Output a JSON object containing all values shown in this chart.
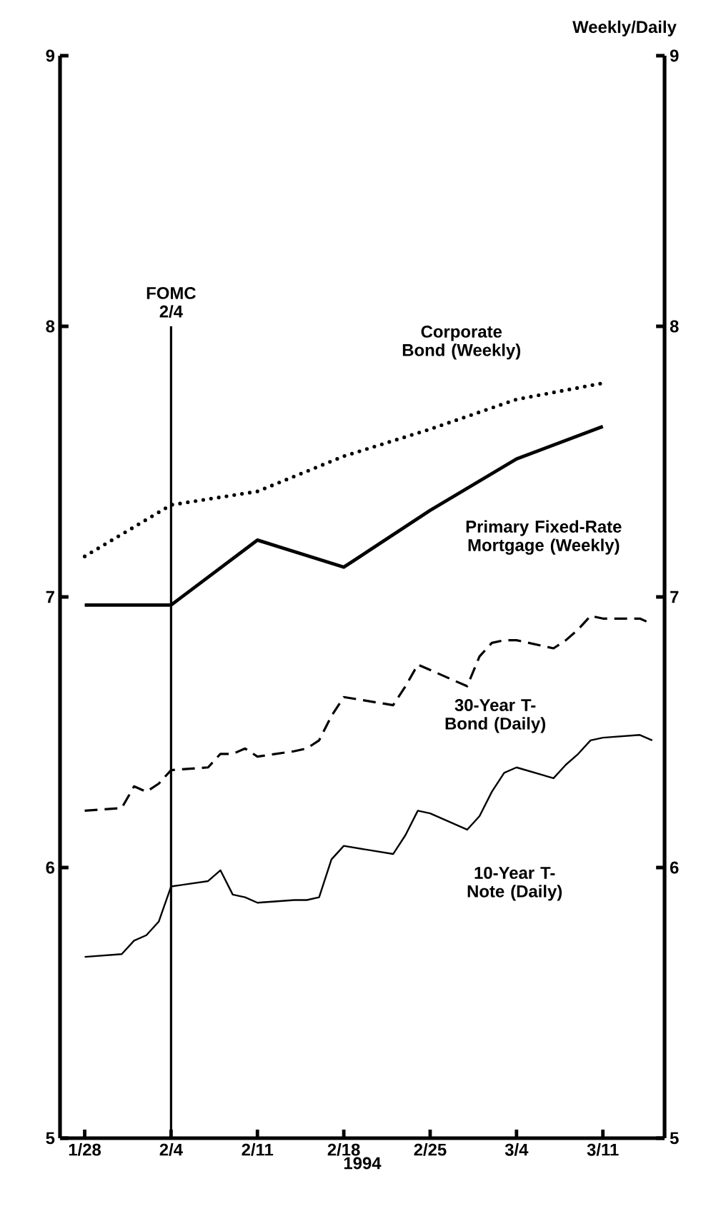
{
  "chart_data": {
    "type": "line",
    "xlabel": "1994",
    "y2label": "Weekly/Daily",
    "xlim": [
      "1994-01-26",
      "1994-03-16"
    ],
    "xticks": [
      {
        "value": "1994-01-28",
        "label": "1/28"
      },
      {
        "value": "1994-02-04",
        "label": "2/4"
      },
      {
        "value": "1994-02-11",
        "label": "2/11"
      },
      {
        "value": "1994-02-18",
        "label": "2/18"
      },
      {
        "value": "1994-02-25",
        "label": "2/25"
      },
      {
        "value": "1994-03-04",
        "label": "3/4"
      },
      {
        "value": "1994-03-11",
        "label": "3/11"
      }
    ],
    "ylim": [
      5,
      9
    ],
    "yticks": [
      5,
      6,
      7,
      8,
      9
    ],
    "y2lim": [
      5,
      9
    ],
    "y2ticks": [
      5,
      6,
      7,
      8,
      9
    ],
    "grid": false,
    "legend": false,
    "marker": "none",
    "ref_lines": [
      {
        "axis": "x",
        "value": "1994-02-04",
        "label": "FOMC 2/4"
      }
    ],
    "series": [
      {
        "name": "Corporate Bond (Weekly)",
        "color": "#000000",
        "line_style": "dotted",
        "x": [
          "1994-01-28",
          "1994-02-04",
          "1994-02-11",
          "1994-02-18",
          "1994-02-25",
          "1994-03-04",
          "1994-03-11"
        ],
        "values": [
          7.15,
          7.34,
          7.39,
          7.52,
          7.62,
          7.73,
          7.79
        ]
      },
      {
        "name": "Primary Fixed-Rate Mortgage (Weekly)",
        "color": "#000000",
        "line_style": "solid",
        "x": [
          "1994-01-28",
          "1994-02-04",
          "1994-02-11",
          "1994-02-18",
          "1994-02-25",
          "1994-03-04",
          "1994-03-11"
        ],
        "values": [
          6.97,
          6.97,
          7.21,
          7.11,
          7.32,
          7.51,
          7.63
        ]
      },
      {
        "name": "30-Year T-Bond (Daily)",
        "color": "#000000",
        "line_style": "dashed",
        "x": [
          "1994-01-28",
          "1994-01-31",
          "1994-02-01",
          "1994-02-02",
          "1994-02-03",
          "1994-02-04",
          "1994-02-07",
          "1994-02-08",
          "1994-02-09",
          "1994-02-10",
          "1994-02-11",
          "1994-02-14",
          "1994-02-15",
          "1994-02-16",
          "1994-02-17",
          "1994-02-18",
          "1994-02-22",
          "1994-02-23",
          "1994-02-24",
          "1994-02-25",
          "1994-02-28",
          "1994-03-01",
          "1994-03-02",
          "1994-03-03",
          "1994-03-04",
          "1994-03-07",
          "1994-03-08",
          "1994-03-09",
          "1994-03-10",
          "1994-03-11",
          "1994-03-14",
          "1994-03-15"
        ],
        "values": [
          6.21,
          6.22,
          6.3,
          6.28,
          6.31,
          6.36,
          6.37,
          6.42,
          6.42,
          6.44,
          6.41,
          6.43,
          6.44,
          6.47,
          6.56,
          6.63,
          6.6,
          6.67,
          6.75,
          6.73,
          6.67,
          6.78,
          6.83,
          6.84,
          6.84,
          6.81,
          6.84,
          6.88,
          6.93,
          6.92,
          6.92,
          6.9
        ]
      },
      {
        "name": "10-Year T-Note (Daily)",
        "color": "#000000",
        "line_style": "solid",
        "x": [
          "1994-01-28",
          "1994-01-31",
          "1994-02-01",
          "1994-02-02",
          "1994-02-03",
          "1994-02-04",
          "1994-02-07",
          "1994-02-08",
          "1994-02-09",
          "1994-02-10",
          "1994-02-11",
          "1994-02-14",
          "1994-02-15",
          "1994-02-16",
          "1994-02-17",
          "1994-02-18",
          "1994-02-22",
          "1994-02-23",
          "1994-02-24",
          "1994-02-25",
          "1994-02-28",
          "1994-03-01",
          "1994-03-02",
          "1994-03-03",
          "1994-03-04",
          "1994-03-07",
          "1994-03-08",
          "1994-03-09",
          "1994-03-10",
          "1994-03-11",
          "1994-03-14",
          "1994-03-15"
        ],
        "values": [
          5.67,
          5.68,
          5.73,
          5.75,
          5.8,
          5.93,
          5.95,
          5.99,
          5.9,
          5.89,
          5.87,
          5.88,
          5.88,
          5.89,
          6.03,
          6.08,
          6.05,
          6.12,
          6.21,
          6.2,
          6.14,
          6.19,
          6.28,
          6.35,
          6.37,
          6.33,
          6.38,
          6.42,
          6.47,
          6.48,
          6.49,
          6.47
        ]
      }
    ]
  }
}
